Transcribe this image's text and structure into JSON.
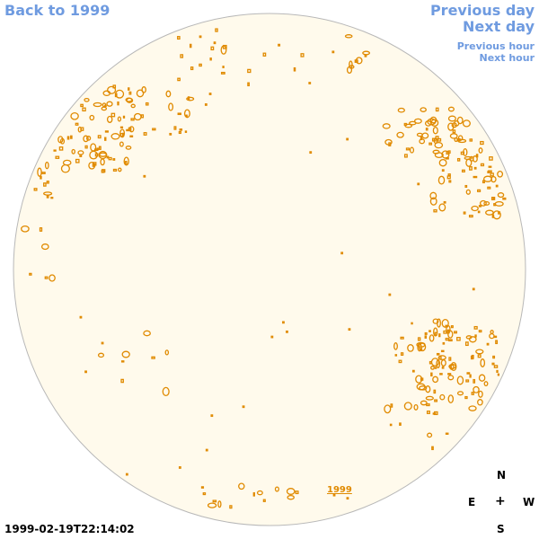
{
  "nav": {
    "back_label": "Back to 1999",
    "previous_day_label": "Previous day",
    "next_day_label": "Next day",
    "previous_hour_label": "Previous hour",
    "next_hour_label": "Next hour"
  },
  "timestamp": "1999-02-19T22:14:02",
  "year_label": "1999",
  "compass": {
    "north": "N",
    "east": "E",
    "center": "+",
    "west": "W",
    "south": "S"
  },
  "colors": {
    "link": "#6f9be0",
    "disk_fill": "#fffaec",
    "disk_stroke": "#b8b8b8",
    "contour": "#e08a00"
  }
}
